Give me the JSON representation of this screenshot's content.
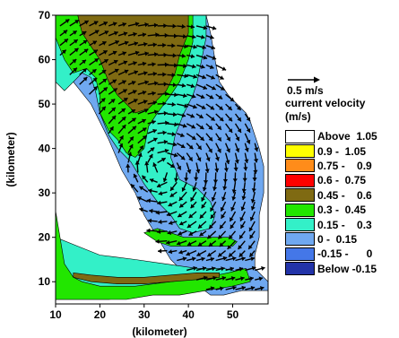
{
  "chart_data": {
    "type": "heatmap",
    "subtype": "filled-contour with current velocity vectors",
    "xlabel": "(kilometer)",
    "ylabel": "(kilometer)",
    "xlim": [
      10,
      58
    ],
    "ylim": [
      5,
      70
    ],
    "xticks": [
      10,
      20,
      30,
      40,
      50
    ],
    "yticks": [
      10,
      20,
      30,
      40,
      50,
      60,
      70
    ],
    "vector_reference": {
      "label": "0.5 m/s",
      "value": 0.5
    },
    "legend": {
      "title": "current velocity",
      "unit": "(m/s)",
      "placement": "right",
      "classes": [
        {
          "label": "Above  1.05",
          "color": "#FFFFFF"
        },
        {
          "label": "0.9 -  1.05",
          "color": "#FFFF00"
        },
        {
          "label": "0.75 -    0.9",
          "color": "#FF8C1A"
        },
        {
          "label": "0.6 -  0.75",
          "color": "#FF0000"
        },
        {
          "label": "0.45 -    0.6",
          "color": "#7F6A12"
        },
        {
          "label": "0.3 -  0.45",
          "color": "#22E600"
        },
        {
          "label": "0.15 -    0.3",
          "color": "#33F0C8"
        },
        {
          "label": "0 -  0.15",
          "color": "#6FA8F0"
        },
        {
          "label": "-0.15 -      0",
          "color": "#4477E8"
        },
        {
          "label": "Below -0.15",
          "color": "#2233A8"
        }
      ]
    },
    "regions": [
      {
        "class": "0 -  0.15",
        "polygon": [
          [
            44,
            70
          ],
          [
            45,
            66
          ],
          [
            46,
            60
          ],
          [
            47,
            55
          ],
          [
            49,
            52
          ],
          [
            51,
            50
          ],
          [
            53,
            48
          ],
          [
            54,
            46
          ],
          [
            55,
            43
          ],
          [
            56,
            40
          ],
          [
            57,
            36
          ],
          [
            57,
            30
          ],
          [
            56,
            25
          ],
          [
            56,
            20
          ],
          [
            55,
            16
          ],
          [
            55,
            13
          ],
          [
            58,
            10
          ],
          [
            58,
            8
          ],
          [
            52,
            8
          ],
          [
            48,
            7
          ],
          [
            45,
            7
          ],
          [
            41,
            10
          ],
          [
            36,
            15
          ],
          [
            33,
            20
          ],
          [
            30,
            25
          ],
          [
            28,
            30
          ],
          [
            25,
            35
          ],
          [
            22,
            42
          ],
          [
            18,
            50
          ],
          [
            14,
            55
          ],
          [
            11,
            60
          ],
          [
            10,
            62
          ],
          [
            10,
            70
          ]
        ]
      },
      {
        "class": "0.15 -    0.3",
        "polygon": [
          [
            10,
            70
          ],
          [
            10,
            55
          ],
          [
            12,
            53
          ],
          [
            14,
            55
          ],
          [
            16,
            57
          ],
          [
            18,
            56
          ],
          [
            19,
            53
          ],
          [
            20,
            48
          ],
          [
            22,
            43
          ],
          [
            24,
            40
          ],
          [
            27,
            37
          ],
          [
            30,
            32
          ],
          [
            33,
            28
          ],
          [
            36,
            25
          ],
          [
            38,
            22
          ],
          [
            41,
            21
          ],
          [
            45,
            22
          ],
          [
            46,
            25
          ],
          [
            45,
            28
          ],
          [
            42,
            31
          ],
          [
            38,
            33
          ],
          [
            36,
            38
          ],
          [
            37,
            43
          ],
          [
            39,
            48
          ],
          [
            41,
            52
          ],
          [
            42,
            55
          ],
          [
            43,
            60
          ],
          [
            44,
            65
          ],
          [
            44,
            70
          ]
        ]
      },
      {
        "class": "0.15 -    0.3",
        "polygon": [
          [
            10,
            20
          ],
          [
            15,
            18
          ],
          [
            20,
            16
          ],
          [
            28,
            15
          ],
          [
            35,
            14
          ],
          [
            42,
            13
          ],
          [
            48,
            13
          ],
          [
            52,
            12
          ],
          [
            52,
            10
          ],
          [
            45,
            9
          ],
          [
            38,
            8
          ],
          [
            30,
            7
          ],
          [
            22,
            6
          ],
          [
            15,
            6
          ],
          [
            10,
            6
          ]
        ]
      },
      {
        "class": "0.3 -  0.45",
        "polygon": [
          [
            10,
            70
          ],
          [
            10,
            65
          ],
          [
            12,
            60
          ],
          [
            14,
            57
          ],
          [
            17,
            58
          ],
          [
            19,
            56
          ],
          [
            20,
            52
          ],
          [
            20,
            48
          ],
          [
            22,
            44
          ],
          [
            24,
            42
          ],
          [
            26,
            39
          ],
          [
            28,
            38
          ],
          [
            30,
            40
          ],
          [
            31,
            45
          ],
          [
            33,
            48
          ],
          [
            36,
            52
          ],
          [
            38,
            55
          ],
          [
            40,
            60
          ],
          [
            41,
            64
          ],
          [
            41,
            70
          ]
        ]
      },
      {
        "class": "0.3 -  0.45",
        "polygon": [
          [
            10,
            26
          ],
          [
            11,
            20
          ],
          [
            12,
            14
          ],
          [
            14,
            11
          ],
          [
            16,
            10
          ],
          [
            20,
            9
          ],
          [
            28,
            9
          ],
          [
            36,
            10
          ],
          [
            44,
            11
          ],
          [
            49,
            12
          ],
          [
            53,
            13
          ],
          [
            54,
            10
          ],
          [
            50,
            9
          ],
          [
            44,
            8
          ],
          [
            38,
            7
          ],
          [
            32,
            7
          ],
          [
            26,
            6
          ],
          [
            20,
            6
          ],
          [
            14,
            6
          ],
          [
            10,
            6
          ]
        ]
      },
      {
        "class": "0.3 -  0.45",
        "polygon": [
          [
            30,
            21
          ],
          [
            33,
            22
          ],
          [
            36,
            21
          ],
          [
            39,
            20
          ],
          [
            43,
            20
          ],
          [
            46,
            20
          ],
          [
            49,
            20
          ],
          [
            51,
            19
          ],
          [
            50,
            18
          ],
          [
            45,
            18
          ],
          [
            40,
            18
          ],
          [
            36,
            18
          ],
          [
            33,
            19
          ]
        ]
      },
      {
        "class": "0.45 -    0.6",
        "polygon": [
          [
            15,
            70
          ],
          [
            16,
            66
          ],
          [
            18,
            63
          ],
          [
            20,
            60
          ],
          [
            22,
            55
          ],
          [
            24,
            52
          ],
          [
            26,
            50
          ],
          [
            28,
            48
          ],
          [
            31,
            49
          ],
          [
            33,
            51
          ],
          [
            35,
            53
          ],
          [
            37,
            57
          ],
          [
            38,
            61
          ],
          [
            40,
            66
          ],
          [
            40,
            70
          ]
        ]
      },
      {
        "class": "0.45 -    0.6",
        "polygon": [
          [
            14,
            11
          ],
          [
            18,
            10
          ],
          [
            24,
            9.5
          ],
          [
            30,
            9.5
          ],
          [
            36,
            10
          ],
          [
            42,
            10.5
          ],
          [
            47,
            11
          ],
          [
            47,
            12
          ],
          [
            42,
            12
          ],
          [
            36,
            11.5
          ],
          [
            30,
            11
          ],
          [
            24,
            11
          ],
          [
            18,
            11.5
          ],
          [
            14,
            12
          ]
        ]
      }
    ],
    "vector_field": {
      "x_range": [
        11,
        57
      ],
      "y_range": [
        6,
        69
      ],
      "spacing_km": 2.2,
      "flow": "recirculating (clockwise) current, southward in west, eastward jet near 10 km"
    }
  }
}
